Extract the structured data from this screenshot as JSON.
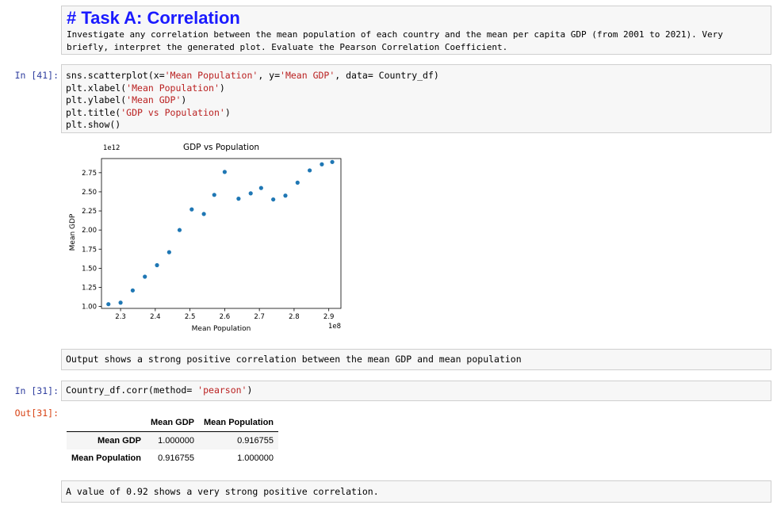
{
  "task": {
    "title": "# Task A: Correlation",
    "desc_line1": "Investigate any correlation between the mean population of each country and the mean per capita GDP (from 2001 to 2021). Very",
    "desc_line2": "briefly, interpret the generated plot. Evaluate the Pearson Correlation Coefficient."
  },
  "cell41": {
    "prompt": "In [41]:",
    "lines": [
      {
        "pre": "sns.scatterplot(x=",
        "s1": "'Mean Population'",
        "mid": ", y=",
        "s2": "'Mean GDP'",
        "post": ", data= Country_df)"
      },
      {
        "pre": "plt.xlabel(",
        "s1": "'Mean Population'",
        "mid": "",
        "s2": "",
        "post": ")"
      },
      {
        "pre": "plt.ylabel(",
        "s1": "'Mean GDP'",
        "mid": "",
        "s2": "",
        "post": ")"
      },
      {
        "pre": "plt.title(",
        "s1": "'GDP vs Population'",
        "mid": "",
        "s2": "",
        "post": ")"
      },
      {
        "pre": "plt.show()",
        "s1": "",
        "mid": "",
        "s2": "",
        "post": ""
      }
    ]
  },
  "chart_data": {
    "type": "scatter",
    "title": "GDP vs Population",
    "xlabel": "Mean Population",
    "ylabel": "Mean GDP",
    "x_offset_label": "1e8",
    "y_offset_label": "1e12",
    "xlim": [
      2.245,
      2.935
    ],
    "ylim": [
      0.975,
      2.935
    ],
    "xticks": [
      2.3,
      2.4,
      2.5,
      2.6,
      2.7,
      2.8,
      2.9
    ],
    "xtick_labels": [
      "2.3",
      "2.4",
      "2.5",
      "2.6",
      "2.7",
      "2.8",
      "2.9"
    ],
    "yticks": [
      1.0,
      1.25,
      1.5,
      1.75,
      2.0,
      2.25,
      2.5,
      2.75
    ],
    "ytick_labels": [
      "1.00",
      "1.25",
      "1.50",
      "1.75",
      "2.00",
      "2.25",
      "2.50",
      "2.75"
    ],
    "color": "#1f77b4",
    "points": [
      {
        "x": 2.265,
        "y": 1.03
      },
      {
        "x": 2.3,
        "y": 1.05
      },
      {
        "x": 2.335,
        "y": 1.21
      },
      {
        "x": 2.37,
        "y": 1.39
      },
      {
        "x": 2.405,
        "y": 1.54
      },
      {
        "x": 2.44,
        "y": 1.71
      },
      {
        "x": 2.47,
        "y": 2.0
      },
      {
        "x": 2.505,
        "y": 2.27
      },
      {
        "x": 2.54,
        "y": 2.21
      },
      {
        "x": 2.57,
        "y": 2.46
      },
      {
        "x": 2.6,
        "y": 2.76
      },
      {
        "x": 2.64,
        "y": 2.41
      },
      {
        "x": 2.675,
        "y": 2.48
      },
      {
        "x": 2.705,
        "y": 2.55
      },
      {
        "x": 2.74,
        "y": 2.4
      },
      {
        "x": 2.775,
        "y": 2.45
      },
      {
        "x": 2.81,
        "y": 2.62
      },
      {
        "x": 2.845,
        "y": 2.78
      },
      {
        "x": 2.88,
        "y": 2.86
      },
      {
        "x": 2.91,
        "y": 2.89
      }
    ]
  },
  "md_output": {
    "text": "Output shows a strong positive correlation between the mean GDP and mean population"
  },
  "cell31": {
    "in_prompt": "In [31]:",
    "code_pre": "Country_df.corr(method= ",
    "code_str": "'pearson'",
    "code_post": ")",
    "out_prompt": "Out[31]:"
  },
  "corr_table": {
    "columns": [
      "",
      "Mean GDP",
      "Mean Population"
    ],
    "rows": [
      {
        "label": "Mean GDP",
        "values": [
          "1.000000",
          "0.916755"
        ]
      },
      {
        "label": "Mean Population",
        "values": [
          "0.916755",
          "1.000000"
        ]
      }
    ]
  },
  "md_final": {
    "text": "A value of 0.92 shows a very strong positive correlation."
  }
}
